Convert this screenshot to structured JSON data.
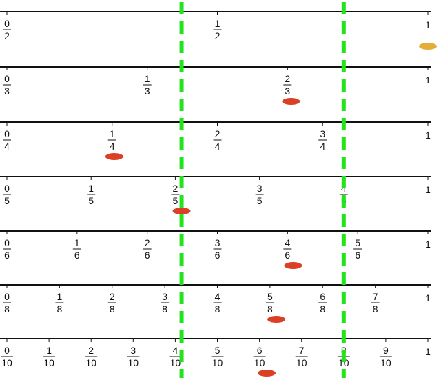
{
  "colors": {
    "guide": "#22e31c",
    "marker_red": "#db3f25",
    "marker_gold": "#e3ad3a",
    "axis": "#111111"
  },
  "guides": [
    {
      "value": 0.415
    },
    {
      "value": 0.8
    }
  ],
  "number_lines": [
    {
      "denominator": 2,
      "labels": [
        {
          "num": "0",
          "den": "2"
        },
        {
          "num": "1",
          "den": "2"
        },
        {
          "whole": "1"
        }
      ],
      "marker": {
        "value": 1.0,
        "color": "#e3ad3a"
      }
    },
    {
      "denominator": 3,
      "labels": [
        {
          "num": "0",
          "den": "3"
        },
        {
          "num": "1",
          "den": "3"
        },
        {
          "num": "2",
          "den": "3"
        },
        {
          "whole": "1"
        }
      ],
      "marker": {
        "value": 0.675,
        "color": "#db3f25"
      }
    },
    {
      "denominator": 4,
      "labels": [
        {
          "num": "0",
          "den": "4"
        },
        {
          "num": "1",
          "den": "4"
        },
        {
          "num": "2",
          "den": "4"
        },
        {
          "num": "3",
          "den": "4"
        },
        {
          "whole": "1"
        }
      ],
      "marker": {
        "value": 0.255,
        "color": "#db3f25"
      }
    },
    {
      "denominator": 5,
      "labels": [
        {
          "num": "0",
          "den": "5"
        },
        {
          "num": "1",
          "den": "5"
        },
        {
          "num": "2",
          "den": "5"
        },
        {
          "num": "3",
          "den": "5"
        },
        {
          "num": "4",
          "den": "5"
        },
        {
          "whole": "1"
        }
      ],
      "marker": {
        "value": 0.415,
        "color": "#db3f25"
      }
    },
    {
      "denominator": 6,
      "labels": [
        {
          "num": "0",
          "den": "6"
        },
        {
          "num": "1",
          "den": "6"
        },
        {
          "num": "2",
          "den": "6"
        },
        {
          "num": "3",
          "den": "6"
        },
        {
          "num": "4",
          "den": "6"
        },
        {
          "num": "5",
          "den": "6"
        },
        {
          "whole": "1"
        }
      ],
      "marker": {
        "value": 0.68,
        "color": "#db3f25"
      }
    },
    {
      "denominator": 8,
      "labels": [
        {
          "num": "0",
          "den": "8"
        },
        {
          "num": "1",
          "den": "8"
        },
        {
          "num": "2",
          "den": "8"
        },
        {
          "num": "3",
          "den": "8"
        },
        {
          "num": "4",
          "den": "8"
        },
        {
          "num": "5",
          "den": "8"
        },
        {
          "num": "6",
          "den": "8"
        },
        {
          "num": "7",
          "den": "8"
        },
        {
          "whole": "1"
        }
      ],
      "marker": {
        "value": 0.64,
        "color": "#db3f25"
      }
    },
    {
      "denominator": 10,
      "labels": [
        {
          "num": "0",
          "den": "10"
        },
        {
          "num": "1",
          "den": "10"
        },
        {
          "num": "2",
          "den": "10"
        },
        {
          "num": "3",
          "den": "10"
        },
        {
          "num": "4",
          "den": "10"
        },
        {
          "num": "5",
          "den": "10"
        },
        {
          "num": "6",
          "den": "10"
        },
        {
          "num": "7",
          "den": "10"
        },
        {
          "num": "8",
          "den": "10"
        },
        {
          "num": "9",
          "den": "10"
        },
        {
          "whole": "1"
        }
      ],
      "marker": {
        "value": 0.617,
        "color": "#db3f25"
      }
    }
  ]
}
